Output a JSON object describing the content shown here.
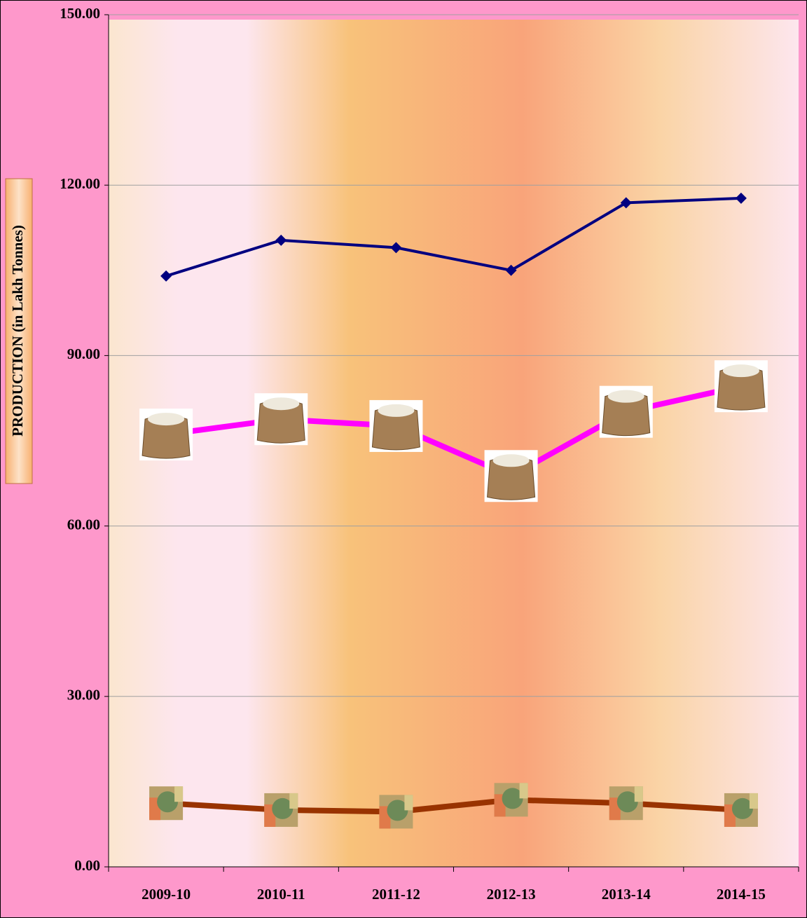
{
  "chart_data": {
    "type": "line",
    "y_label": "PRODUCTION (in Lakh Tonnes)",
    "categories": [
      "2009-10",
      "2010-11",
      "2011-12",
      "2012-13",
      "2013-14",
      "2014-15"
    ],
    "series": [
      {
        "color": "#000080",
        "marker": "diamond",
        "values": [
          104.0,
          110.3,
          109.0,
          105.0,
          116.9,
          117.7
        ]
      },
      {
        "color": "#ff00ff",
        "marker": "rice-bag",
        "values": [
          76.1,
          78.8,
          77.6,
          68.8,
          80.1,
          84.6
        ]
      },
      {
        "color": "#993300",
        "marker": "seeds",
        "values": [
          11.2,
          10.0,
          9.7,
          11.8,
          11.2,
          10.0
        ]
      }
    ],
    "ylim": [
      0,
      150
    ],
    "yticks": [
      {
        "value": 0,
        "label": "0.00"
      },
      {
        "value": 30,
        "label": "30.00"
      },
      {
        "value": 60,
        "label": "60.00"
      },
      {
        "value": 90,
        "label": "90.00"
      },
      {
        "value": 120,
        "label": "120.00"
      },
      {
        "value": 150,
        "label": "150.00"
      }
    ],
    "grid": true
  }
}
